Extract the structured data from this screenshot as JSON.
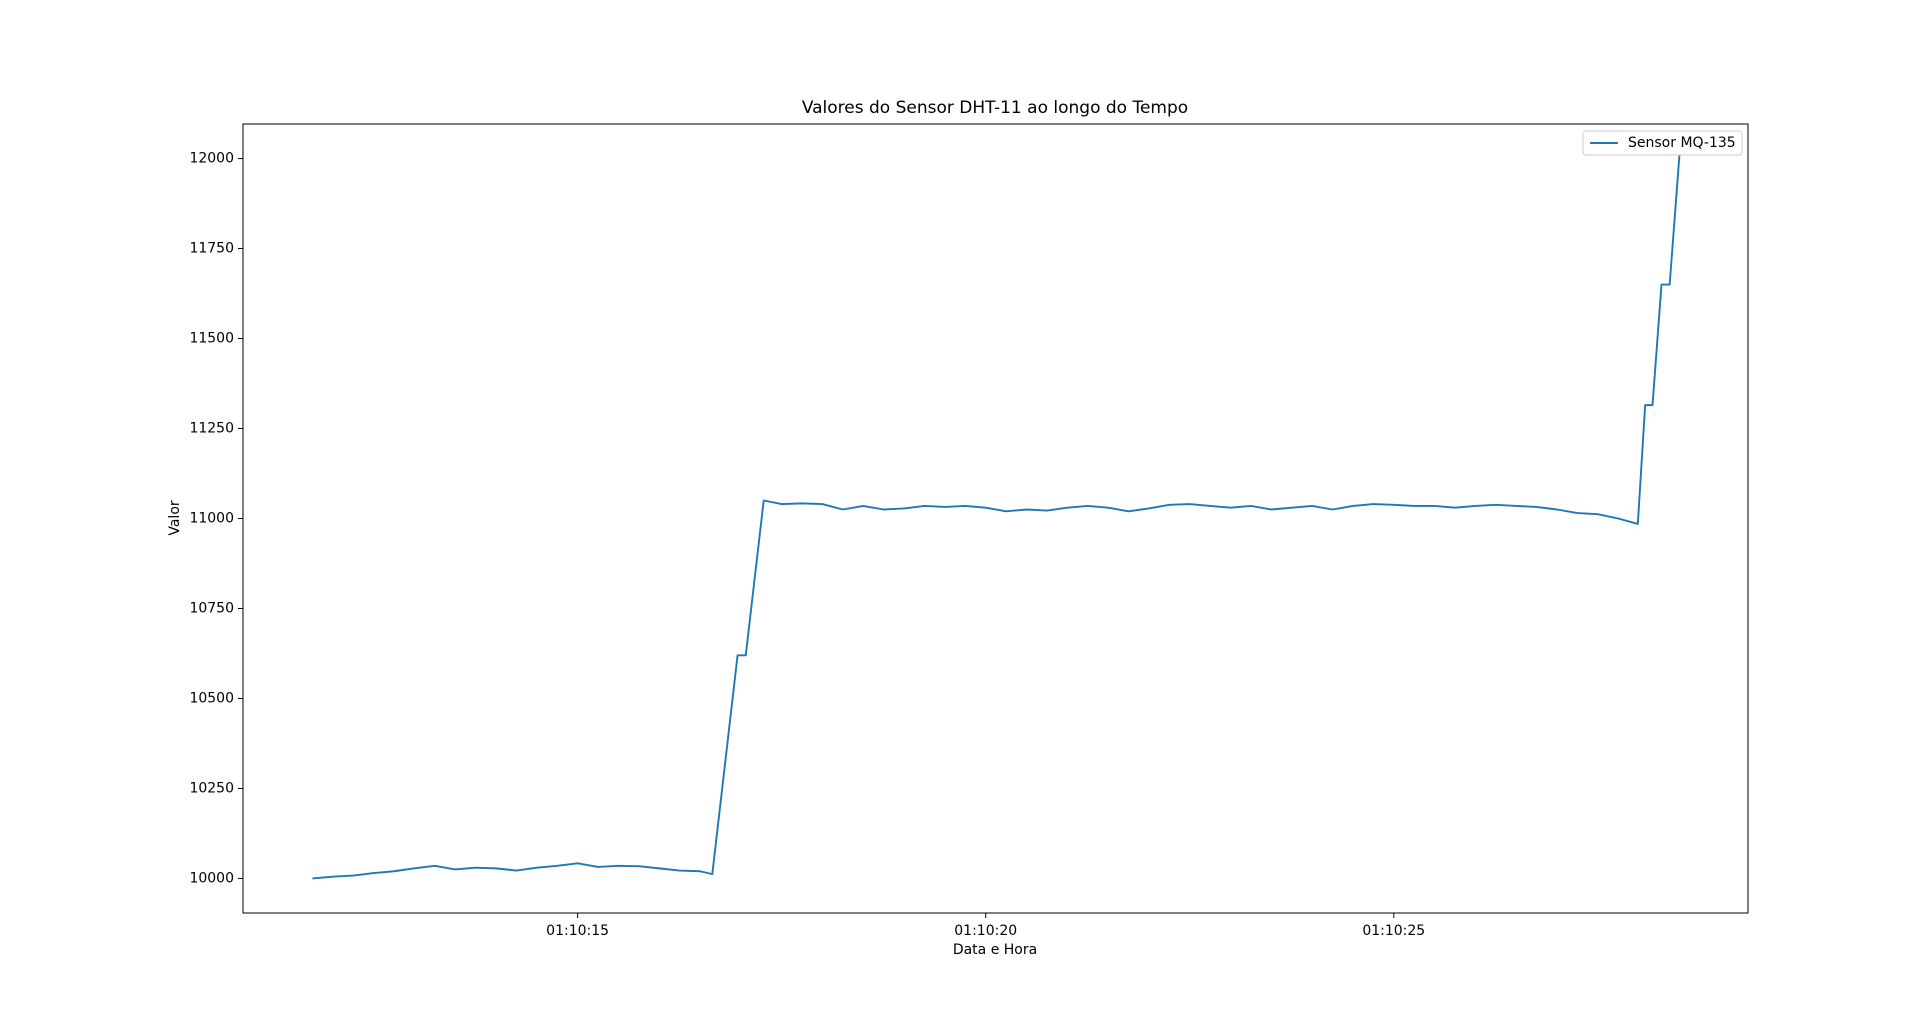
{
  "chart_data": {
    "type": "line",
    "title": "Valores do Sensor DHT-11 ao longo do Tempo",
    "xlabel": "Data e Hora",
    "ylabel": "Valor",
    "legend": "upper right",
    "x": [
      "01:10:11.75",
      "01:10:12.0",
      "01:10:12.25",
      "01:10:12.5",
      "01:10:12.75",
      "01:10:13.0",
      "01:10:13.25",
      "01:10:13.5",
      "01:10:13.75",
      "01:10:14.0",
      "01:10:14.25",
      "01:10:14.5",
      "01:10:14.75",
      "01:10:15.0",
      "01:10:15.25",
      "01:10:15.5",
      "01:10:15.75",
      "01:10:16.0",
      "01:10:16.25",
      "01:10:16.5",
      "01:10:16.65",
      "01:10:16.96",
      "01:10:17.06",
      "01:10:17.28",
      "01:10:17.5",
      "01:10:17.75",
      "01:10:18.0",
      "01:10:18.25",
      "01:10:18.5",
      "01:10:18.75",
      "01:10:19.0",
      "01:10:19.25",
      "01:10:19.5",
      "01:10:19.75",
      "01:10:20.0",
      "01:10:20.25",
      "01:10:20.5",
      "01:10:20.75",
      "01:10:21.0",
      "01:10:21.25",
      "01:10:21.5",
      "01:10:21.75",
      "01:10:22.0",
      "01:10:22.25",
      "01:10:22.5",
      "01:10:22.75",
      "01:10:23.0",
      "01:10:23.25",
      "01:10:23.5",
      "01:10:23.75",
      "01:10:24.0",
      "01:10:24.25",
      "01:10:24.5",
      "01:10:24.75",
      "01:10:25.0",
      "01:10:25.25",
      "01:10:25.5",
      "01:10:25.75",
      "01:10:26.0",
      "01:10:26.25",
      "01:10:26.5",
      "01:10:26.75",
      "01:10:27.0",
      "01:10:27.25",
      "01:10:27.5",
      "01:10:27.75",
      "01:10:27.99",
      "01:10:28.08",
      "01:10:28.17",
      "01:10:28.28",
      "01:10:28.38",
      "01:10:28.5"
    ],
    "series": [
      {
        "name": "Sensor MQ-135",
        "color": "#1f77b4",
        "values": [
          10000,
          10005,
          10008,
          10015,
          10020,
          10028,
          10035,
          10025,
          10030,
          10028,
          10022,
          10030,
          10035,
          10042,
          10032,
          10035,
          10034,
          10028,
          10022,
          10020,
          10012,
          10620,
          10620,
          11050,
          11040,
          11042,
          11040,
          11025,
          11035,
          11025,
          11028,
          11035,
          11032,
          11035,
          11030,
          11020,
          11025,
          11022,
          11030,
          11035,
          11030,
          11020,
          11028,
          11038,
          11040,
          11035,
          11030,
          11035,
          11025,
          11030,
          11035,
          11025,
          11035,
          11040,
          11038,
          11035,
          11035,
          11030,
          11035,
          11038,
          11035,
          11032,
          11025,
          11015,
          11012,
          11000,
          10985,
          11315,
          11315,
          11650,
          11650,
          12010
        ]
      }
    ],
    "xlim": [
      "01:10:10.90",
      "01:10:29.34"
    ],
    "xticks": [
      "01:10:15",
      "01:10:20",
      "01:10:25"
    ],
    "ylim": [
      9904,
      12096
    ],
    "yticks": [
      10000,
      10250,
      10500,
      10750,
      11000,
      11250,
      11500,
      11750,
      12000
    ]
  }
}
